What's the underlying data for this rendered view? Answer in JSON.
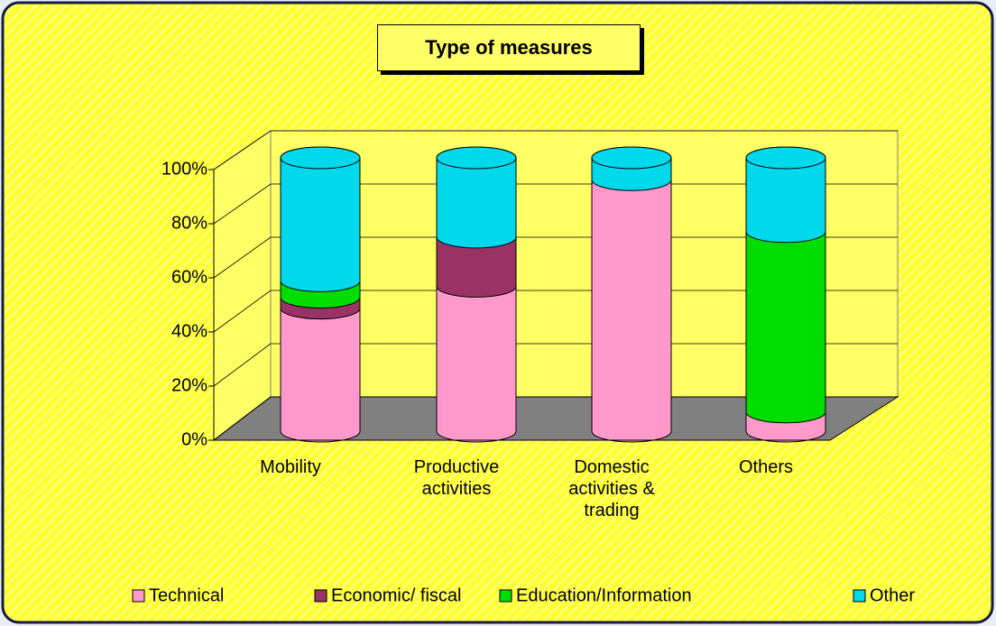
{
  "chart_data": {
    "type": "bar",
    "stacked": true,
    "title": "Type of measures",
    "categories": [
      "Mobility",
      "Productive activities",
      "Domestic activities & trading",
      "Others"
    ],
    "series": [
      {
        "name": "Technical",
        "color": "#ff99cc",
        "values": [
          45,
          53,
          92,
          7
        ]
      },
      {
        "name": "Economic/ fiscal",
        "color": "#993366",
        "values": [
          4,
          18,
          0,
          0
        ]
      },
      {
        "name": "Education/Information",
        "color": "#00dd00",
        "values": [
          6,
          0,
          0,
          66
        ]
      },
      {
        "name": "Other",
        "color": "#00d8ec",
        "values": [
          45,
          29,
          8,
          27
        ]
      }
    ],
    "ylim": [
      0,
      100
    ],
    "yticks": [
      {
        "value": 0,
        "label": "0%"
      },
      {
        "value": 20,
        "label": "20%"
      },
      {
        "value": 40,
        "label": "40%"
      },
      {
        "value": 60,
        "label": "60%"
      },
      {
        "value": 80,
        "label": "80%"
      },
      {
        "value": 100,
        "label": "100%"
      }
    ],
    "grid": true
  }
}
